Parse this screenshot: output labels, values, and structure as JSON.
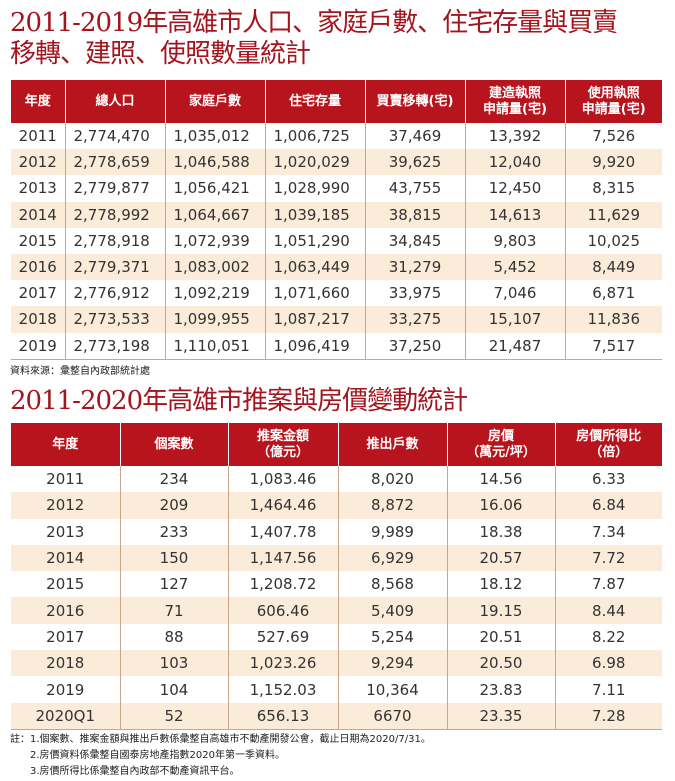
{
  "table1": {
    "title_line1": "2011-2019年高雄市人口、家庭戶數、住宅存量與買賣",
    "title_line2": "移轉、建照、使照數量統計",
    "headers": [
      "年度",
      "總人口",
      "家庭戶數",
      "住宅存量",
      "買賣移轉(宅)",
      "建造執照\n申請量(宅)",
      "使用執照\n申請量(宅)"
    ],
    "rows": [
      [
        "2011",
        "2,774,470",
        "1,035,012",
        "1,006,725",
        "37,469",
        "13,392",
        "7,526"
      ],
      [
        "2012",
        "2,778,659",
        "1,046,588",
        "1,020,029",
        "39,625",
        "12,040",
        "9,920"
      ],
      [
        "2013",
        "2,779,877",
        "1,056,421",
        "1,028,990",
        "43,755",
        "12,450",
        "8,315"
      ],
      [
        "2014",
        "2,778,992",
        "1,064,667",
        "1,039,185",
        "38,815",
        "14,613",
        "11,629"
      ],
      [
        "2015",
        "2,778,918",
        "1,072,939",
        "1,051,290",
        "34,845",
        "9,803",
        "10,025"
      ],
      [
        "2016",
        "2,779,371",
        "1,083,002",
        "1,063,449",
        "31,279",
        "5,452",
        "8,449"
      ],
      [
        "2017",
        "2,776,912",
        "1,092,219",
        "1,071,660",
        "33,975",
        "7,046",
        "6,871"
      ],
      [
        "2018",
        "2,773,533",
        "1,099,955",
        "1,087,217",
        "33,275",
        "15,107",
        "11,836"
      ],
      [
        "2019",
        "2,773,198",
        "1,110,051",
        "1,096,419",
        "37,250",
        "21,487",
        "7,517"
      ]
    ],
    "source": "資料來源：彙整自內政部統計處"
  },
  "table2": {
    "title": "2011-2020年高雄市推案與房價變動統計",
    "headers": [
      "年度",
      "個案數",
      "推案金額\n（億元）",
      "推出戶數",
      "房價\n（萬元/坪）",
      "房價所得比\n（倍）"
    ],
    "rows": [
      [
        "2011",
        "234",
        "1,083.46",
        "8,020",
        "14.56",
        "6.33"
      ],
      [
        "2012",
        "209",
        "1,464.46",
        "8,872",
        "16.06",
        "6.84"
      ],
      [
        "2013",
        "233",
        "1,407.78",
        "9,989",
        "18.38",
        "7.34"
      ],
      [
        "2014",
        "150",
        "1,147.56",
        "6,929",
        "20.57",
        "7.72"
      ],
      [
        "2015",
        "127",
        "1,208.72",
        "8,568",
        "18.12",
        "7.87"
      ],
      [
        "2016",
        "71",
        "606.46",
        "5,409",
        "19.15",
        "8.44"
      ],
      [
        "2017",
        "88",
        "527.69",
        "5,254",
        "20.51",
        "8.22"
      ],
      [
        "2018",
        "103",
        "1,023.26",
        "9,294",
        "20.50",
        "6.98"
      ],
      [
        "2019",
        "104",
        "1,152.03",
        "10,364",
        "23.83",
        "7.11"
      ],
      [
        "2020Q1",
        "52",
        "656.13",
        "6670",
        "23.35",
        "7.28"
      ]
    ],
    "notes_label": "註：",
    "notes": [
      "1.個案數、推案金額與推出戶數係彙整自高雄市不動產開發公會，截止日期為2020/7/31。",
      "2.房價資料係彙整自國泰房地產指數2020年第一季資料。",
      "3.房價所得比係彙整自內政部不動產資訊平台。"
    ]
  },
  "colors": {
    "title": "#a3151f",
    "header_bg": "#b7141d",
    "stripe": "#fbecd9"
  }
}
